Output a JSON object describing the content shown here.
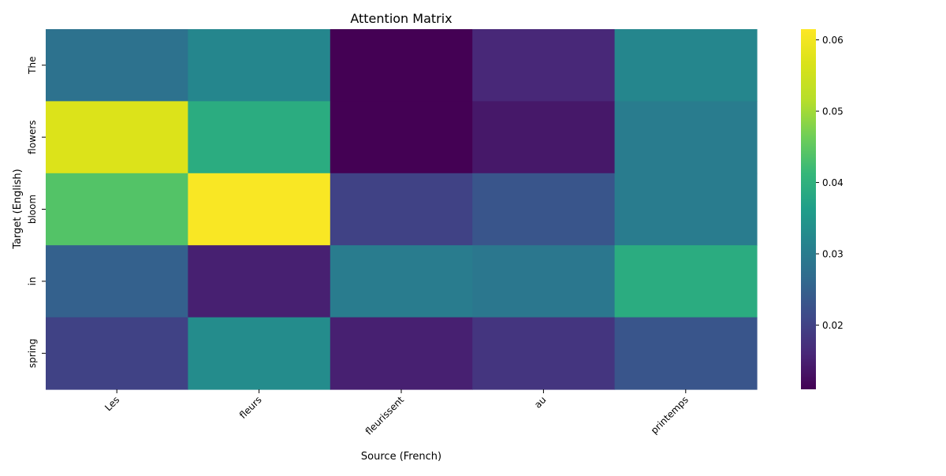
{
  "chart_data": {
    "type": "heatmap",
    "title": "Attention Matrix",
    "xlabel": "Source (French)",
    "ylabel": "Target (English)",
    "x_categories": [
      "Les",
      "fleurs",
      "fleurissent",
      "au",
      "printemps"
    ],
    "y_categories": [
      "The",
      "flowers",
      "bloom",
      "in",
      "spring"
    ],
    "values": [
      [
        0.028,
        0.032,
        0.011,
        0.016,
        0.032
      ],
      [
        0.057,
        0.039,
        0.011,
        0.014,
        0.03
      ],
      [
        0.044,
        0.061,
        0.02,
        0.023,
        0.03
      ],
      [
        0.025,
        0.015,
        0.03,
        0.029,
        0.039
      ],
      [
        0.02,
        0.033,
        0.015,
        0.018,
        0.023
      ]
    ],
    "colormap": "viridis",
    "colorbar": {
      "range": [
        0.011,
        0.0615
      ],
      "ticks": [
        0.02,
        0.03,
        0.04,
        0.05,
        0.06
      ],
      "tick_labels": [
        "0.02",
        "0.03",
        "0.04",
        "0.05",
        "0.06"
      ]
    }
  }
}
